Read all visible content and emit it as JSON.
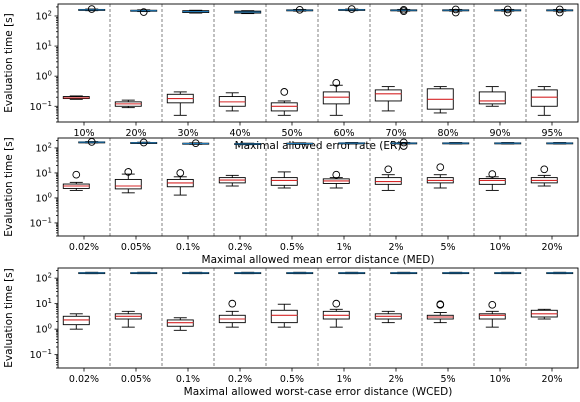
{
  "chart_data": [
    {
      "type": "box",
      "xlabel": "Maximal allowed error rate (ER)",
      "ylabel": "Evaluation time [s]",
      "yscale": "log",
      "ylim": [
        0.03,
        250
      ],
      "yticks": [
        "10^-1",
        "10^0",
        "10^1",
        "10^2"
      ],
      "categories": [
        "10%",
        "20%",
        "30%",
        "40%",
        "50%",
        "60%",
        "70%",
        "80%",
        "90%",
        "95%"
      ],
      "series": [
        {
          "boxes": [
            {
              "whislo": 0.17,
              "q1": 0.18,
              "med": 0.19,
              "q3": 0.21,
              "whishi": 0.22,
              "fliers": []
            },
            {
              "whislo": 0.09,
              "q1": 0.1,
              "med": 0.12,
              "q3": 0.14,
              "whishi": 0.16,
              "fliers": []
            },
            {
              "whislo": 0.05,
              "q1": 0.13,
              "med": 0.18,
              "q3": 0.25,
              "whishi": 0.3,
              "fliers": []
            },
            {
              "whislo": 0.07,
              "q1": 0.1,
              "med": 0.14,
              "q3": 0.21,
              "whishi": 0.28,
              "fliers": []
            },
            {
              "whislo": 0.05,
              "q1": 0.07,
              "med": 0.1,
              "q3": 0.13,
              "whishi": 0.15,
              "fliers": [
                0.3
              ]
            },
            {
              "whislo": 0.05,
              "q1": 0.12,
              "med": 0.2,
              "q3": 0.3,
              "whishi": 0.5,
              "fliers": [
                0.6
              ]
            },
            {
              "whislo": 0.07,
              "q1": 0.15,
              "med": 0.26,
              "q3": 0.35,
              "whishi": 0.45,
              "fliers": []
            },
            {
              "whislo": 0.06,
              "q1": 0.08,
              "med": 0.17,
              "q3": 0.38,
              "whishi": 0.45,
              "fliers": []
            },
            {
              "whislo": 0.1,
              "q1": 0.12,
              "med": 0.15,
              "q3": 0.3,
              "whishi": 0.45,
              "fliers": []
            },
            {
              "whislo": 0.05,
              "q1": 0.1,
              "med": 0.2,
              "q3": 0.35,
              "whishi": 0.45,
              "fliers": []
            }
          ]
        },
        {
          "boxes": [
            {
              "whislo": 150,
              "q1": 155,
              "med": 160,
              "q3": 165,
              "whishi": 170,
              "fliers": [
                170
              ]
            },
            {
              "whislo": 140,
              "q1": 145,
              "med": 150,
              "q3": 155,
              "whishi": 160,
              "fliers": [
                135
              ]
            },
            {
              "whislo": 125,
              "q1": 130,
              "med": 140,
              "q3": 150,
              "whishi": 155,
              "fliers": []
            },
            {
              "whislo": 120,
              "q1": 125,
              "med": 135,
              "q3": 145,
              "whishi": 150,
              "fliers": []
            },
            {
              "whislo": 145,
              "q1": 150,
              "med": 155,
              "q3": 160,
              "whishi": 165,
              "fliers": [
                160
              ]
            },
            {
              "whislo": 150,
              "q1": 155,
              "med": 160,
              "q3": 165,
              "whishi": 170,
              "fliers": [
                170
              ]
            },
            {
              "whislo": 145,
              "q1": 150,
              "med": 155,
              "q3": 160,
              "whishi": 165,
              "fliers": [
                160,
                145
              ]
            },
            {
              "whislo": 145,
              "q1": 150,
              "med": 155,
              "q3": 160,
              "whishi": 165,
              "fliers": [
                165,
                130
              ]
            },
            {
              "whislo": 145,
              "q1": 150,
              "med": 155,
              "q3": 160,
              "whishi": 165,
              "fliers": [
                165,
                130
              ]
            },
            {
              "whislo": 145,
              "q1": 150,
              "med": 155,
              "q3": 160,
              "whishi": 165,
              "fliers": [
                165,
                130
              ]
            }
          ]
        }
      ]
    },
    {
      "type": "box",
      "xlabel": "Maximal allowed mean error distance (MED)",
      "ylabel": "Evaluation time [s]",
      "yscale": "log",
      "ylim": [
        0.03,
        250
      ],
      "yticks": [
        "10^-1",
        "10^0",
        "10^1",
        "10^2"
      ],
      "categories": [
        "0.02%",
        "0.05%",
        "0.1%",
        "0.2%",
        "0.5%",
        "1%",
        "2%",
        "5%",
        "10%",
        "20%"
      ],
      "series": [
        {
          "boxes": [
            {
              "whislo": 2.0,
              "q1": 2.4,
              "med": 3.0,
              "q3": 3.6,
              "whishi": 4.2,
              "fliers": [
                8.5
              ]
            },
            {
              "whislo": 1.6,
              "q1": 2.3,
              "med": 3.0,
              "q3": 5.5,
              "whishi": 9.0,
              "fliers": [
                11
              ]
            },
            {
              "whislo": 1.3,
              "q1": 2.8,
              "med": 4.0,
              "q3": 5.5,
              "whishi": 7.0,
              "fliers": [
                10
              ]
            },
            {
              "whislo": 3.0,
              "q1": 4.0,
              "med": 5.2,
              "q3": 6.5,
              "whishi": 8.0,
              "fliers": []
            },
            {
              "whislo": 2.5,
              "q1": 3.2,
              "med": 5.0,
              "q3": 6.5,
              "whishi": 11,
              "fliers": []
            },
            {
              "whislo": 2.5,
              "q1": 3.8,
              "med": 4.8,
              "q3": 5.8,
              "whishi": 6.5,
              "fliers": [
                8.5
              ]
            },
            {
              "whislo": 2.0,
              "q1": 3.5,
              "med": 4.5,
              "q3": 6.5,
              "whishi": 8.5,
              "fliers": [
                14
              ]
            },
            {
              "whislo": 2.5,
              "q1": 4.0,
              "med": 5.0,
              "q3": 6.5,
              "whishi": 8.5,
              "fliers": [
                17
              ]
            },
            {
              "whislo": 2.0,
              "q1": 3.5,
              "med": 5.0,
              "q3": 6.0,
              "whishi": 7.0,
              "fliers": [
                9
              ]
            },
            {
              "whislo": 3.0,
              "q1": 4.0,
              "med": 5.0,
              "q3": 6.5,
              "whishi": 8.0,
              "fliers": [
                14
              ]
            }
          ]
        },
        {
          "boxes": [
            {
              "whislo": 160,
              "q1": 165,
              "med": 170,
              "q3": 175,
              "whishi": 180,
              "fliers": [
                175
              ]
            },
            {
              "whislo": 150,
              "q1": 155,
              "med": 160,
              "q3": 165,
              "whishi": 170,
              "fliers": [
                165
              ]
            },
            {
              "whislo": 140,
              "q1": 145,
              "med": 150,
              "q3": 155,
              "whishi": 160,
              "fliers": [
                155
              ]
            },
            {
              "whislo": 135,
              "q1": 140,
              "med": 145,
              "q3": 150,
              "whishi": 155,
              "fliers": []
            },
            {
              "whislo": 140,
              "q1": 145,
              "med": 150,
              "q3": 155,
              "whishi": 160,
              "fliers": []
            },
            {
              "whislo": 145,
              "q1": 150,
              "med": 155,
              "q3": 160,
              "whishi": 165,
              "fliers": []
            },
            {
              "whislo": 145,
              "q1": 150,
              "med": 155,
              "q3": 160,
              "whishi": 165,
              "fliers": [
                165,
                120
              ]
            },
            {
              "whislo": 145,
              "q1": 150,
              "med": 155,
              "q3": 160,
              "whishi": 165,
              "fliers": []
            },
            {
              "whislo": 145,
              "q1": 150,
              "med": 155,
              "q3": 160,
              "whishi": 165,
              "fliers": []
            },
            {
              "whislo": 145,
              "q1": 150,
              "med": 155,
              "q3": 160,
              "whishi": 165,
              "fliers": []
            }
          ]
        }
      ]
    },
    {
      "type": "box",
      "xlabel": "Maximal allowed worst-case error distance (WCED)",
      "ylabel": "Evaluation time [s]",
      "yscale": "log",
      "ylim": [
        0.03,
        250
      ],
      "yticks": [
        "10^-1",
        "10^0",
        "10^1",
        "10^2"
      ],
      "categories": [
        "0.02%",
        "0.05%",
        "0.1%",
        "0.2%",
        "0.5%",
        "1%",
        "2%",
        "5%",
        "10%",
        "20%"
      ],
      "series": [
        {
          "boxes": [
            {
              "whislo": 1.0,
              "q1": 1.5,
              "med": 2.3,
              "q3": 3.2,
              "whishi": 4.0,
              "fliers": []
            },
            {
              "whislo": 1.2,
              "q1": 2.5,
              "med": 3.2,
              "q3": 4.0,
              "whishi": 5.0,
              "fliers": []
            },
            {
              "whislo": 0.9,
              "q1": 1.3,
              "med": 1.8,
              "q3": 2.3,
              "whishi": 2.8,
              "fliers": []
            },
            {
              "whislo": 1.2,
              "q1": 1.8,
              "med": 2.5,
              "q3": 3.5,
              "whishi": 5.0,
              "fliers": [
                10
              ]
            },
            {
              "whislo": 1.2,
              "q1": 1.8,
              "med": 3.5,
              "q3": 5.5,
              "whishi": 9.5,
              "fliers": []
            },
            {
              "whislo": 1.2,
              "q1": 2.5,
              "med": 3.5,
              "q3": 5.0,
              "whishi": 6.0,
              "fliers": [
                10
              ]
            },
            {
              "whislo": 1.8,
              "q1": 2.5,
              "med": 3.2,
              "q3": 4.0,
              "whishi": 5.0,
              "fliers": []
            },
            {
              "whislo": 1.8,
              "q1": 2.5,
              "med": 3.0,
              "q3": 3.5,
              "whishi": 4.5,
              "fliers": [
                9.0,
                9.5
              ]
            },
            {
              "whislo": 1.2,
              "q1": 2.5,
              "med": 3.5,
              "q3": 4.0,
              "whishi": 5.0,
              "fliers": [
                9
              ]
            },
            {
              "whislo": 2.5,
              "q1": 3.0,
              "med": 4.0,
              "q3": 5.5,
              "whishi": 6.0,
              "fliers": []
            }
          ]
        },
        {
          "boxes": [
            {
              "whislo": 150,
              "q1": 155,
              "med": 160,
              "q3": 165,
              "whishi": 170,
              "fliers": []
            },
            {
              "whislo": 150,
              "q1": 155,
              "med": 160,
              "q3": 165,
              "whishi": 170,
              "fliers": []
            },
            {
              "whislo": 150,
              "q1": 155,
              "med": 160,
              "q3": 165,
              "whishi": 170,
              "fliers": []
            },
            {
              "whislo": 150,
              "q1": 155,
              "med": 160,
              "q3": 165,
              "whishi": 170,
              "fliers": []
            },
            {
              "whislo": 150,
              "q1": 155,
              "med": 160,
              "q3": 165,
              "whishi": 170,
              "fliers": []
            },
            {
              "whislo": 150,
              "q1": 155,
              "med": 160,
              "q3": 165,
              "whishi": 170,
              "fliers": []
            },
            {
              "whislo": 150,
              "q1": 155,
              "med": 160,
              "q3": 165,
              "whishi": 170,
              "fliers": []
            },
            {
              "whislo": 150,
              "q1": 155,
              "med": 160,
              "q3": 165,
              "whishi": 170,
              "fliers": []
            },
            {
              "whislo": 150,
              "q1": 155,
              "med": 160,
              "q3": 165,
              "whishi": 170,
              "fliers": []
            },
            {
              "whislo": 150,
              "q1": 155,
              "med": 160,
              "q3": 165,
              "whishi": 170,
              "fliers": []
            }
          ]
        }
      ]
    }
  ],
  "colors": {
    "box_edge": "#000000",
    "median_low": "#d62728",
    "median_high": "#1f77b4",
    "divider": "#808080",
    "axes": "#000000"
  }
}
